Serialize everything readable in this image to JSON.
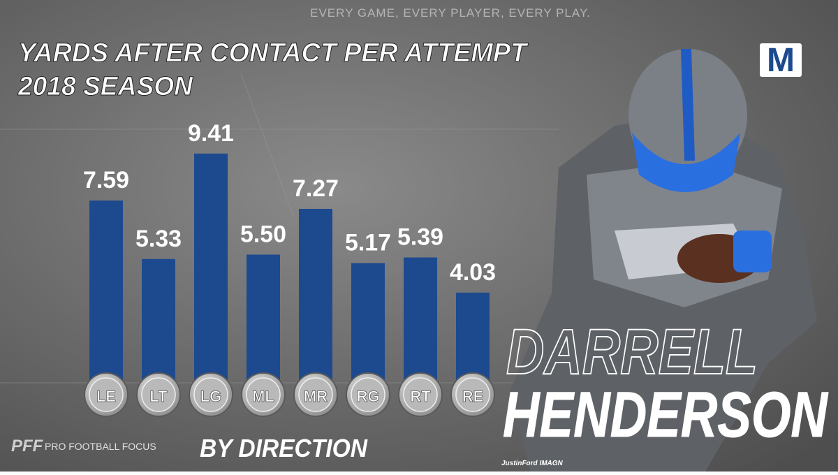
{
  "tagline": "EVERY GAME, EVERY PLAYER, EVERY PLAY.",
  "brand": {
    "logo": "PFF",
    "name": "PRO FOOTBALL FOCUS"
  },
  "team_logo": "M",
  "player": {
    "first": "DARRELL",
    "last": "HENDERSON"
  },
  "credit": "JustinFord IMAGN",
  "chart_data": {
    "type": "bar",
    "title": "YARDS AFTER CONTACT PER ATTEMPT",
    "subtitle": "2018 SEASON",
    "x_label": "BY DIRECTION",
    "categories": [
      "LE",
      "LT",
      "LG",
      "ML",
      "MR",
      "RG",
      "RT",
      "RE"
    ],
    "values": [
      7.59,
      5.33,
      9.41,
      5.5,
      7.27,
      5.17,
      5.39,
      4.03
    ],
    "value_labels": [
      "7.59",
      "5.33",
      "9.41",
      "5.50",
      "7.27",
      "5.17",
      "5.39",
      "4.03"
    ],
    "color": "#1d4a8f"
  }
}
